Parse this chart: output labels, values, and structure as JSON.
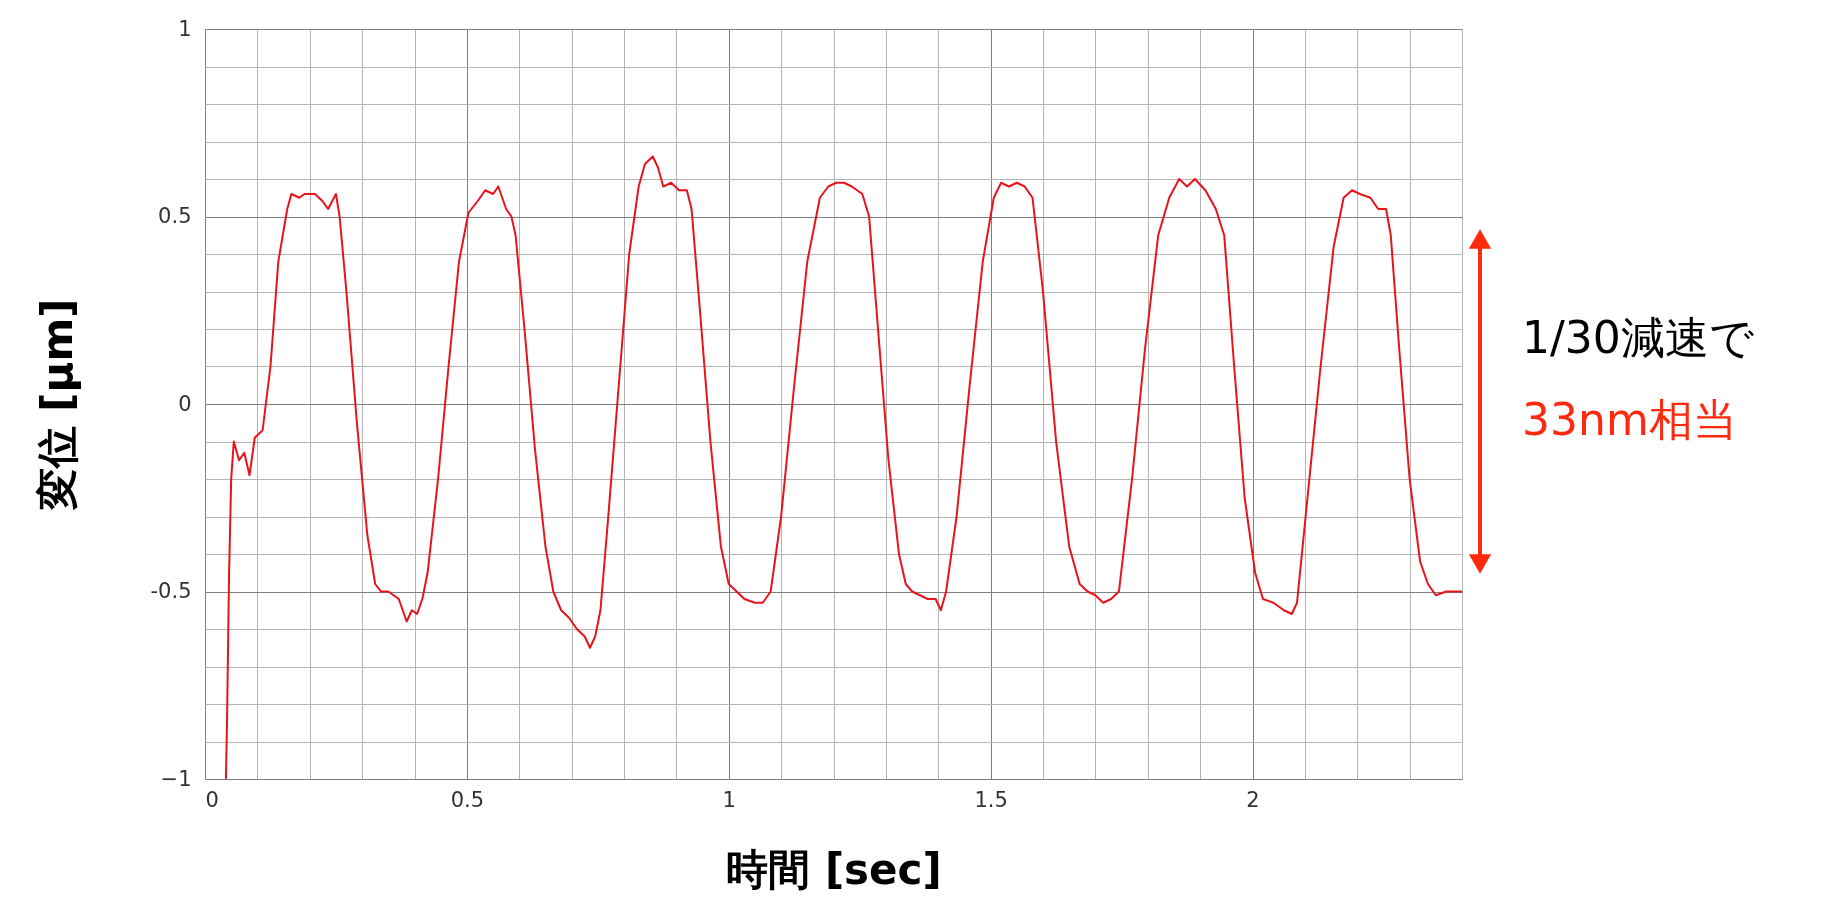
{
  "chart_data": {
    "type": "line",
    "xlabel": "時間 [sec]",
    "ylabel": "変位 [μm]",
    "xlim": [
      0,
      2.4
    ],
    "ylim": [
      -1,
      1
    ],
    "xticks": [
      0,
      {
        "value": 0.1,
        "label": null
      },
      {
        "value": 0.2,
        "label": null
      },
      {
        "value": 0.3,
        "label": null
      },
      {
        "value": 0.4,
        "label": null
      },
      0.5,
      {
        "value": 0.6,
        "label": null
      },
      {
        "value": 0.7,
        "label": null
      },
      {
        "value": 0.8,
        "label": null
      },
      {
        "value": 0.9,
        "label": null
      },
      1,
      {
        "value": 1.1,
        "label": null
      },
      {
        "value": 1.2,
        "label": null
      },
      {
        "value": 1.3,
        "label": null
      },
      {
        "value": 1.4,
        "label": null
      },
      1.5,
      {
        "value": 1.6,
        "label": null
      },
      {
        "value": 1.7,
        "label": null
      },
      {
        "value": 1.8,
        "label": null
      },
      {
        "value": 1.9,
        "label": null
      },
      2,
      {
        "value": 2.1,
        "label": null
      },
      {
        "value": 2.2,
        "label": null
      },
      {
        "value": 2.3,
        "label": null
      },
      {
        "value": 2.4,
        "label": null
      }
    ],
    "yticks": [
      {
        "value": -1,
        "label": "−1"
      },
      {
        "value": -0.9,
        "label": null
      },
      {
        "value": -0.8,
        "label": null
      },
      {
        "value": -0.7,
        "label": null
      },
      {
        "value": -0.6,
        "label": null
      },
      {
        "value": -0.5,
        "label": "-0.5"
      },
      {
        "value": -0.4,
        "label": null
      },
      {
        "value": -0.3,
        "label": null
      },
      {
        "value": -0.2,
        "label": null
      },
      {
        "value": -0.1,
        "label": null
      },
      0,
      {
        "value": 0.1,
        "label": null
      },
      {
        "value": 0.2,
        "label": null
      },
      {
        "value": 0.3,
        "label": null
      },
      {
        "value": 0.4,
        "label": null
      },
      0.5,
      {
        "value": 0.6,
        "label": null
      },
      {
        "value": 0.7,
        "label": null
      },
      {
        "value": 0.8,
        "label": null
      },
      {
        "value": 0.9,
        "label": null
      },
      1
    ],
    "grid": true,
    "marker": "none",
    "line_style": "solid",
    "annotations": [
      "1/30減速で",
      "33nm相当"
    ],
    "series": [
      {
        "color": "#e8141c",
        "x": [
          0.04,
          0.042,
          0.046,
          0.05,
          0.055,
          0.065,
          0.075,
          0.085,
          0.095,
          0.11,
          0.125,
          0.14,
          0.157,
          0.165,
          0.18,
          0.19,
          0.21,
          0.225,
          0.235,
          0.25,
          0.257,
          0.27,
          0.29,
          0.31,
          0.325,
          0.336,
          0.35,
          0.37,
          0.385,
          0.395,
          0.405,
          0.415,
          0.425,
          0.445,
          0.465,
          0.485,
          0.503,
          0.52,
          0.535,
          0.55,
          0.56,
          0.575,
          0.585,
          0.593,
          0.61,
          0.63,
          0.65,
          0.665,
          0.68,
          0.695,
          0.71,
          0.725,
          0.735,
          0.745,
          0.755,
          0.77,
          0.79,
          0.81,
          0.828,
          0.84,
          0.855,
          0.865,
          0.875,
          0.89,
          0.905,
          0.92,
          0.929,
          0.945,
          0.965,
          0.985,
          1.0,
          1.015,
          1.03,
          1.05,
          1.065,
          1.08,
          1.1,
          1.125,
          1.15,
          1.174,
          1.19,
          1.205,
          1.22,
          1.235,
          1.255,
          1.268,
          1.285,
          1.305,
          1.325,
          1.338,
          1.35,
          1.365,
          1.38,
          1.395,
          1.405,
          1.415,
          1.435,
          1.46,
          1.485,
          1.506,
          1.52,
          1.535,
          1.55,
          1.565,
          1.58,
          1.6,
          1.625,
          1.65,
          1.67,
          1.685,
          1.7,
          1.715,
          1.73,
          1.745,
          1.77,
          1.795,
          1.82,
          1.841,
          1.86,
          1.875,
          1.89,
          1.91,
          1.93,
          1.946,
          1.965,
          1.985,
          2.005,
          2.02,
          2.04,
          2.06,
          2.075,
          2.085,
          2.105,
          2.13,
          2.155,
          2.174,
          2.19,
          2.205,
          2.225,
          2.24,
          2.255,
          2.264,
          2.28,
          2.3,
          2.32,
          2.335,
          2.35,
          2.37,
          2.4
        ],
        "values": [
          -1,
          -0.85,
          -0.45,
          -0.2,
          -0.1,
          -0.15,
          -0.13,
          -0.19,
          -0.09,
          -0.07,
          0.1,
          0.38,
          0.52,
          0.56,
          0.55,
          0.56,
          0.56,
          0.54,
          0.52,
          0.56,
          0.5,
          0.3,
          -0.05,
          -0.35,
          -0.48,
          -0.5,
          -0.5,
          -0.52,
          -0.58,
          -0.55,
          -0.56,
          -0.52,
          -0.45,
          -0.2,
          0.1,
          0.38,
          0.51,
          0.54,
          0.57,
          0.56,
          0.58,
          0.52,
          0.5,
          0.45,
          0.2,
          -0.12,
          -0.38,
          -0.5,
          -0.55,
          -0.57,
          -0.6,
          -0.62,
          -0.65,
          -0.62,
          -0.55,
          -0.3,
          0.05,
          0.4,
          0.58,
          0.64,
          0.66,
          0.63,
          0.58,
          0.59,
          0.57,
          0.57,
          0.52,
          0.25,
          -0.1,
          -0.38,
          -0.48,
          -0.5,
          -0.52,
          -0.53,
          -0.53,
          -0.5,
          -0.3,
          0.05,
          0.38,
          0.55,
          0.58,
          0.59,
          0.59,
          0.58,
          0.56,
          0.5,
          0.2,
          -0.15,
          -0.4,
          -0.48,
          -0.5,
          -0.51,
          -0.52,
          -0.52,
          -0.55,
          -0.5,
          -0.3,
          0.05,
          0.38,
          0.55,
          0.59,
          0.58,
          0.59,
          0.58,
          0.55,
          0.3,
          -0.1,
          -0.38,
          -0.48,
          -0.5,
          -0.51,
          -0.53,
          -0.52,
          -0.5,
          -0.2,
          0.15,
          0.45,
          0.55,
          0.6,
          0.58,
          0.6,
          0.57,
          0.52,
          0.45,
          0.1,
          -0.25,
          -0.45,
          -0.52,
          -0.53,
          -0.55,
          -0.56,
          -0.53,
          -0.25,
          0.1,
          0.42,
          0.55,
          0.57,
          0.56,
          0.55,
          0.52,
          0.52,
          0.45,
          0.15,
          -0.2,
          -0.42,
          -0.48,
          -0.51,
          -0.5,
          -0.5
        ]
      }
    ]
  }
}
